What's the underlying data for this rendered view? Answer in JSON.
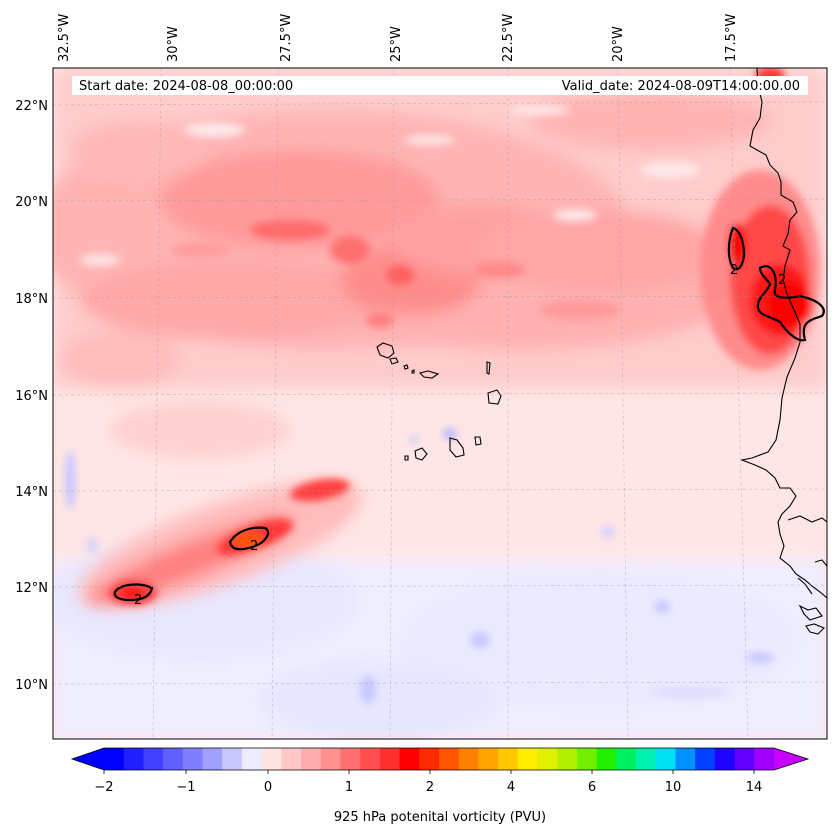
{
  "header": {
    "start_date": "Start date: 2024-08-08_00:00:00",
    "valid_date": "Valid_date: 2024-08-09T14:00:00.00"
  },
  "map": {
    "variable": "925 hPa potenital vorticity (PVU)",
    "lon_labels": [
      "32.5°W",
      "30°W",
      "27.5°W",
      "25°W",
      "22.5°W",
      "20°W",
      "17.5°W"
    ],
    "lat_labels": [
      "22°N",
      "20°N",
      "18°N",
      "16°N",
      "14°N",
      "12°N",
      "10°N"
    ],
    "contour_labels": [
      "2",
      "2",
      "2",
      "2"
    ]
  },
  "colorbar": {
    "tick_labels": [
      "−2",
      "−1",
      "0",
      "1",
      "2",
      "4",
      "6",
      "10",
      "14"
    ],
    "colors": [
      "#0000ff",
      "#2020ff",
      "#4040ff",
      "#6060ff",
      "#8080ff",
      "#a0a0ff",
      "#c8c8ff",
      "#ececff",
      "#ffe4e4",
      "#ffc8c8",
      "#ffadad",
      "#ff9090",
      "#ff7070",
      "#ff5050",
      "#ff3030",
      "#ff0000",
      "#ff2a00",
      "#ff5500",
      "#ff7f00",
      "#ffa500",
      "#ffc800",
      "#ffee00",
      "#e0f000",
      "#b0f000",
      "#70f000",
      "#20f000",
      "#00f060",
      "#00f0b0",
      "#00e0f0",
      "#0090ff",
      "#0040ff",
      "#2000ff",
      "#6000ff",
      "#a000ff"
    ],
    "under_color": "#0000ff",
    "over_color": "#c800ff"
  }
}
